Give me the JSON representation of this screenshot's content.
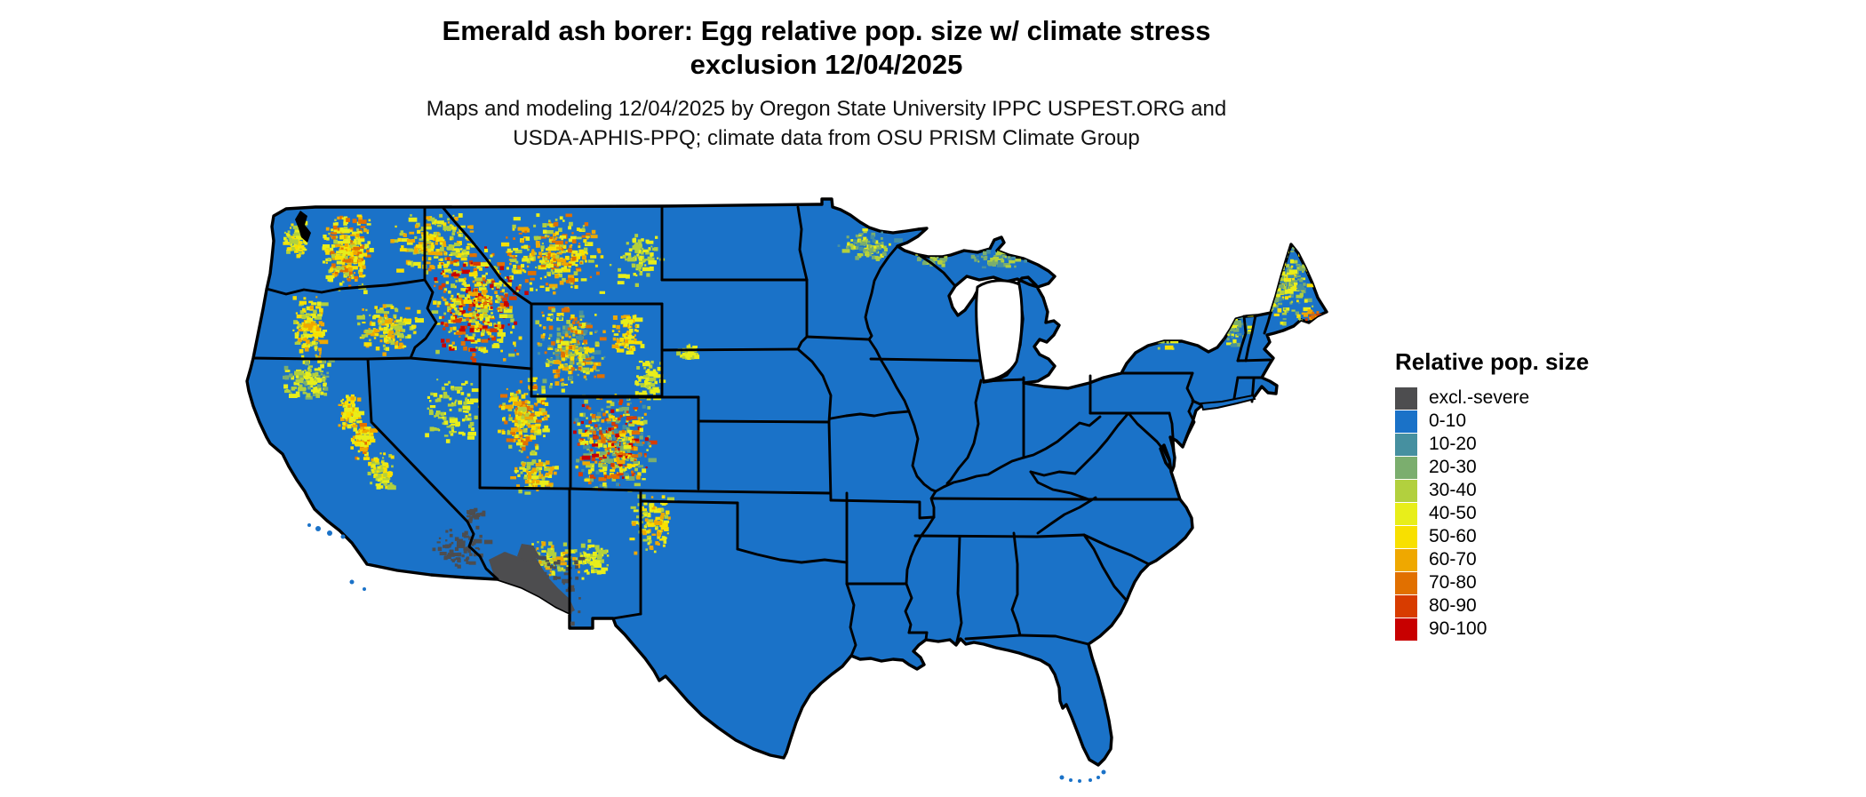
{
  "header": {
    "title_line1": "Emerald ash borer: Egg relative pop. size w/ climate stress",
    "title_line2": "exclusion 12/04/2025",
    "subtitle_line1": "Maps and modeling 12/04/2025 by Oregon State University IPPC USPEST.ORG and",
    "subtitle_line2": "USDA-APHIS-PPQ; climate data from OSU PRISM Climate Group"
  },
  "legend": {
    "title": "Relative pop. size",
    "items": [
      {
        "label": "excl.-severe",
        "color": "#4d4d4f"
      },
      {
        "label": "0-10",
        "color": "#1a72c8"
      },
      {
        "label": "10-20",
        "color": "#4690a0"
      },
      {
        "label": "20-30",
        "color": "#7bae6e"
      },
      {
        "label": "30-40",
        "color": "#b2d03e"
      },
      {
        "label": "40-50",
        "color": "#e8ee1a"
      },
      {
        "label": "50-60",
        "color": "#f8e000"
      },
      {
        "label": "60-70",
        "color": "#efa800"
      },
      {
        "label": "70-80",
        "color": "#e17000"
      },
      {
        "label": "80-90",
        "color": "#d83c00"
      },
      {
        "label": "90-100",
        "color": "#c80000"
      }
    ]
  },
  "map": {
    "region": "Contiguous United States",
    "base_class": "0-10",
    "land_color": "#1a72c8",
    "border_color": "#000000",
    "water_color": "#ffffff",
    "exclusion_color": "#4d4d4f",
    "notes": "Most of the map is class 0-10 (blue). Exclusion/severe-stress (dark gray) covers southern Arizona and fringes of southeastern California. Mottled higher classes (yellow to red) trace the mountain West: Cascades, Sierra Nevada, Idaho and Montana Rockies, Yellowstone, Wasatch and Colorado Rockies. Green/teal speckling appears in northern Minnesota, the Michigan UP, the Adirondacks and interior Maine."
  }
}
